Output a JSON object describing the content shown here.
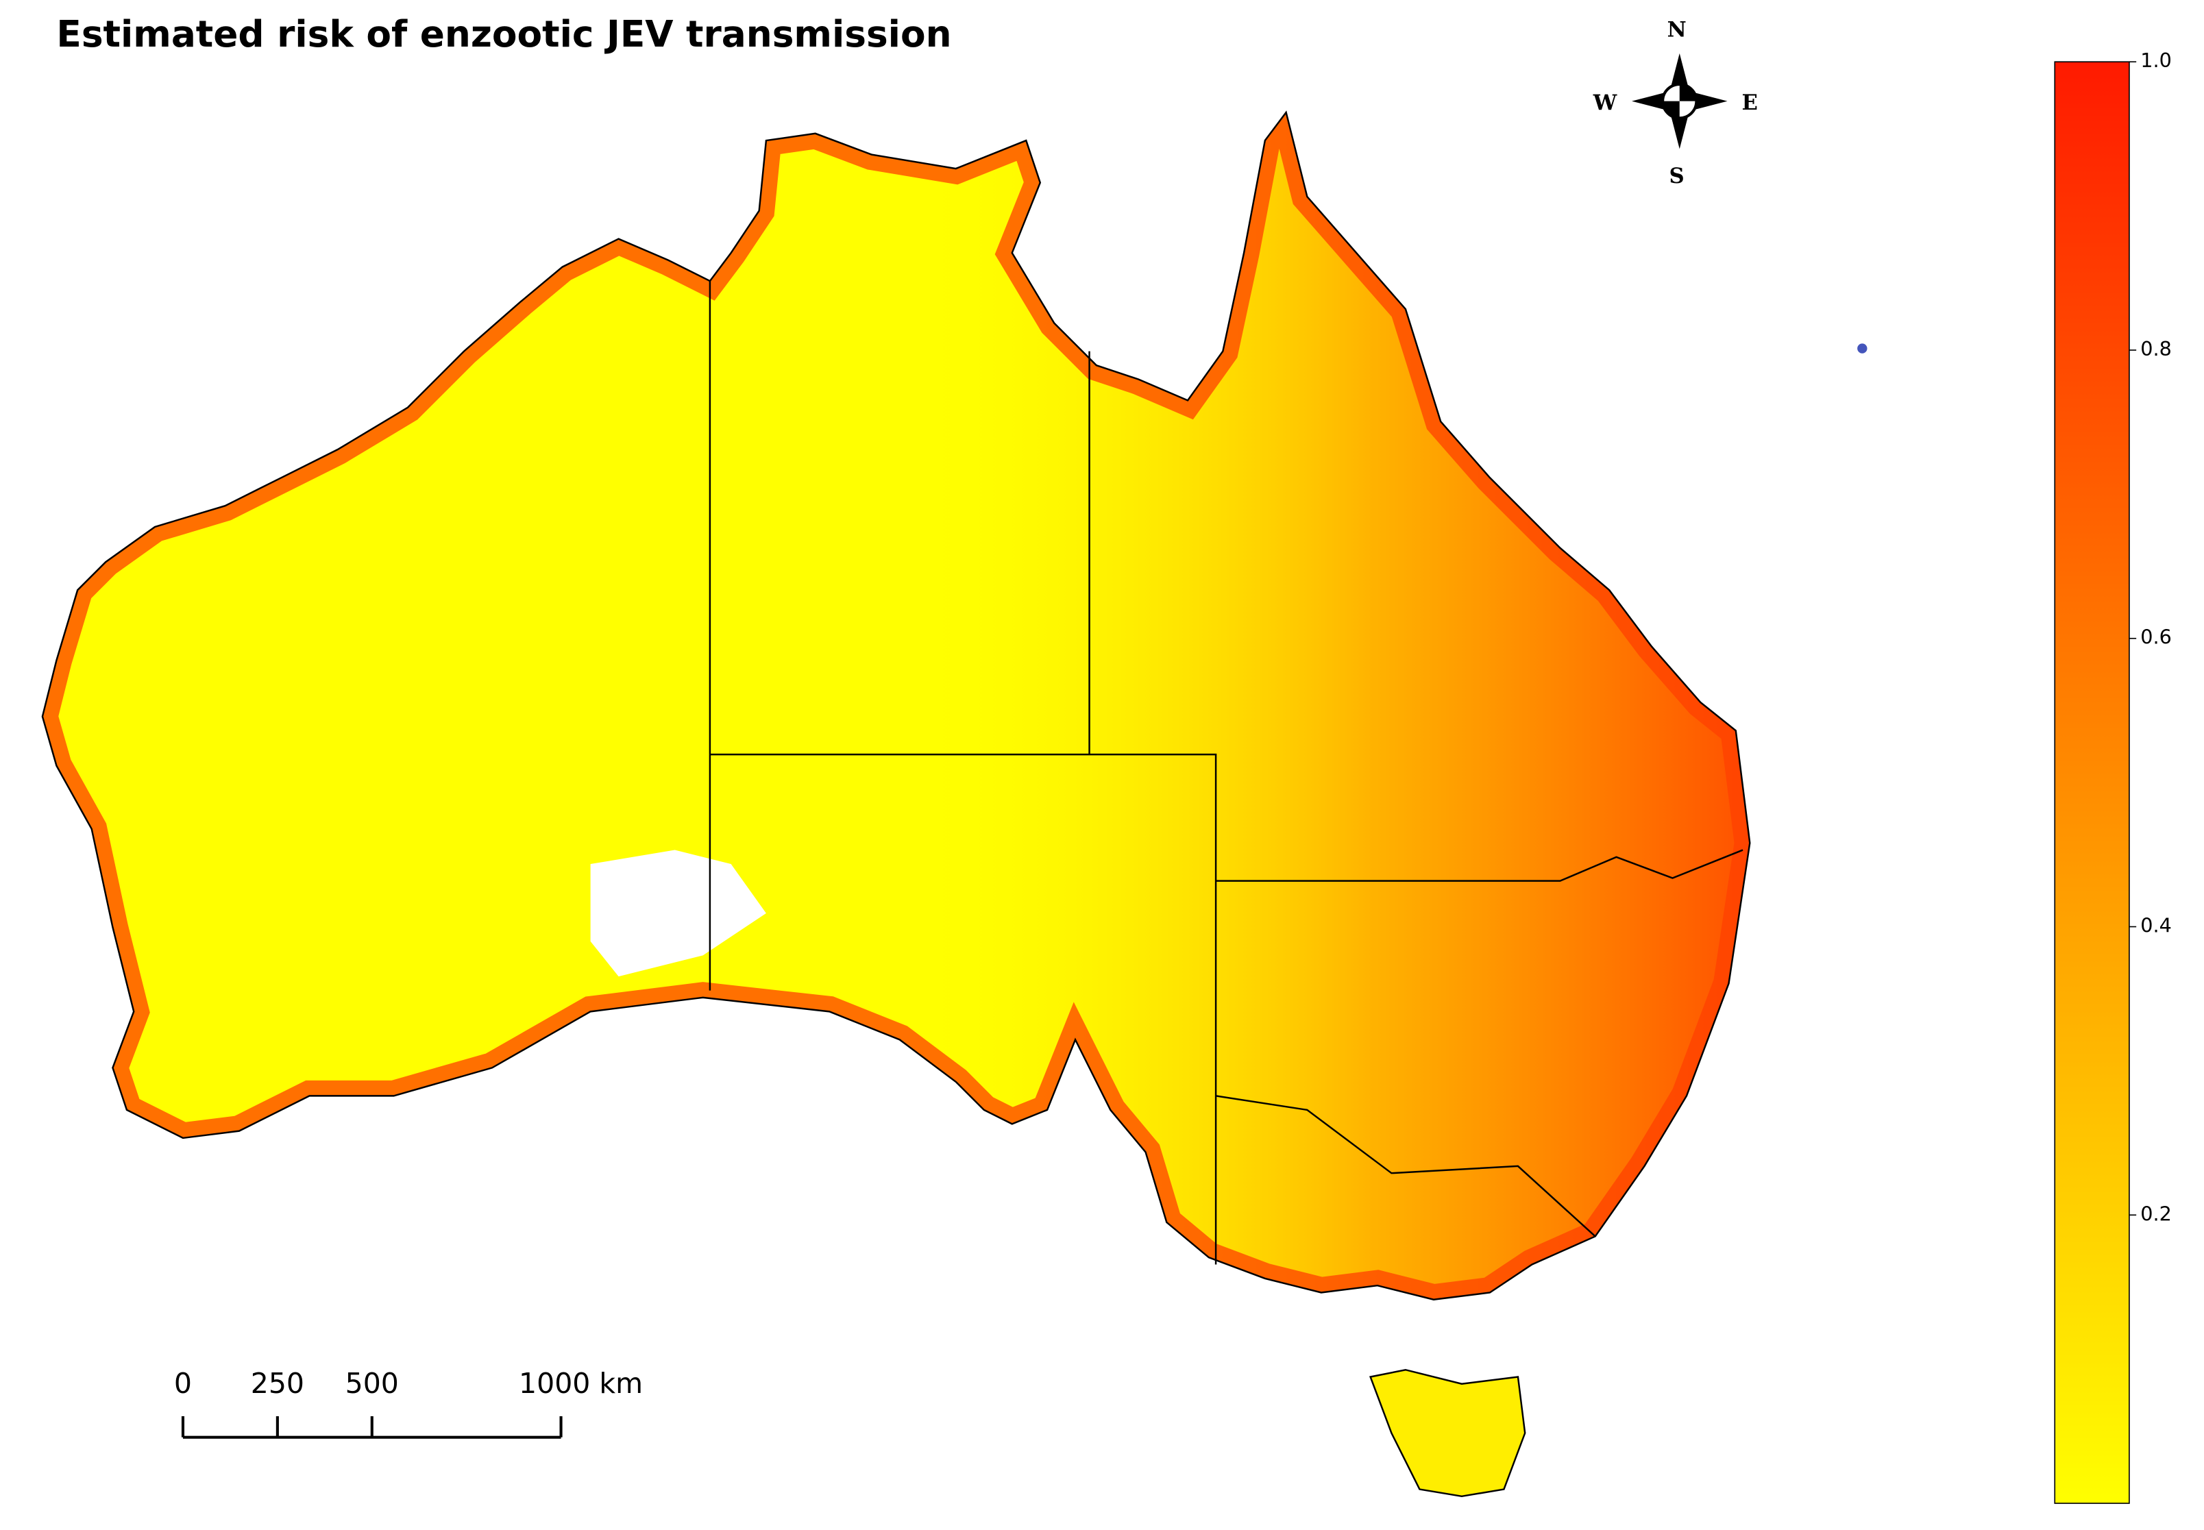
{
  "title": "Estimated risk of enzootic JEV transmission",
  "compass": {
    "north": "N",
    "south": "S",
    "east": "E",
    "west": "W"
  },
  "scale_bar": {
    "ticks": [
      0,
      250,
      500,
      {
        "value": 1000,
        "label": "1000 km"
      }
    ]
  },
  "colorbar": {
    "lim": [
      0,
      1
    ],
    "ticks": [
      0.2,
      0.4,
      0.6,
      0.8,
      {
        "value": 1,
        "label": "1.0"
      }
    ],
    "colors": [
      "#ffff00",
      "#ff8c00",
      "#ff1a00"
    ]
  }
}
